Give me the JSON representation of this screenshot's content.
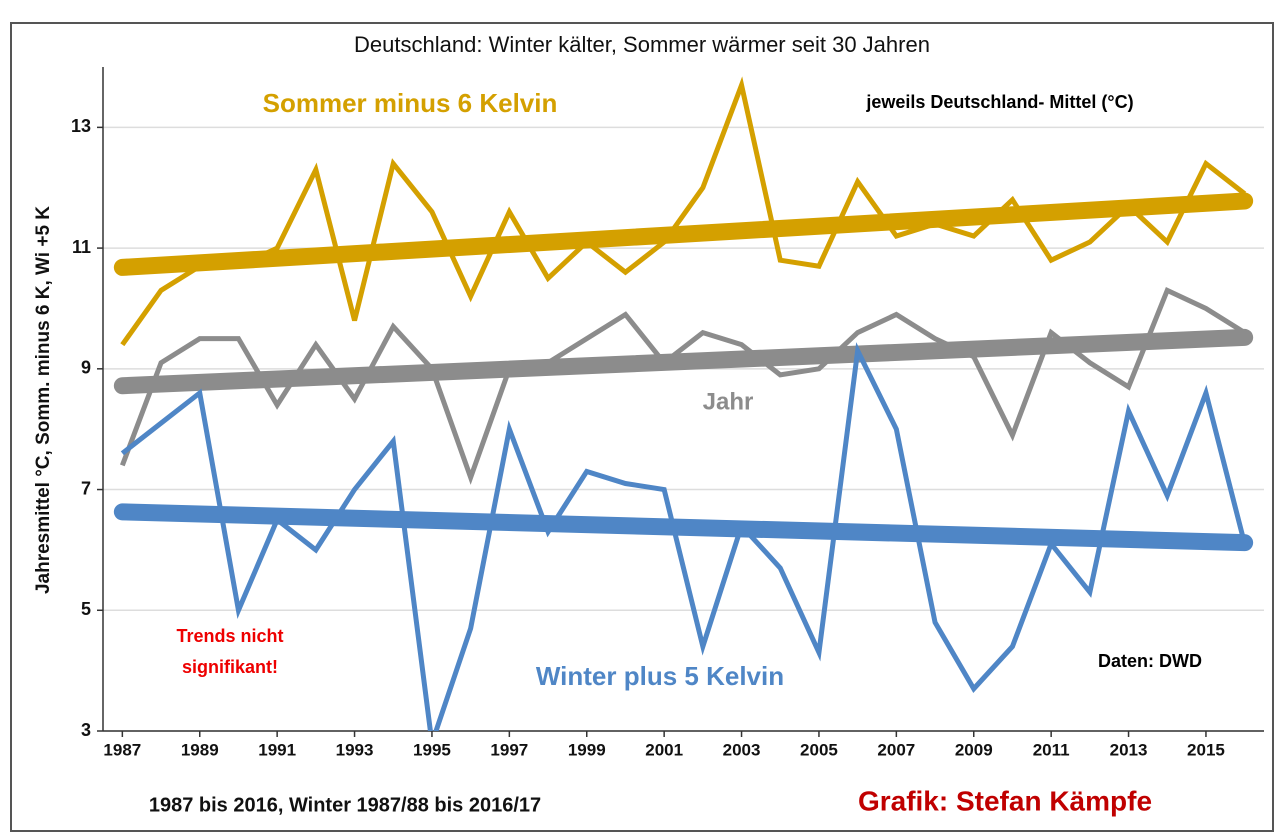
{
  "chart_data": {
    "type": "line",
    "title": "Deutschland: Winter kälter, Sommer wärmer seit 30 Jahren",
    "y_label": "Jahresmittel °C, Somm. minus 6 K, Wi +5 K",
    "annotations": [
      "jeweils Deutschland- Mittel (°C)",
      "Trends nicht",
      "signifikant!",
      "Daten: DWD",
      "1987 bis 2016, Winter 1987/88 bis 2016/17",
      "Grafik: Stefan Kämpfe"
    ],
    "x": [
      1987,
      1988,
      1989,
      1990,
      1991,
      1992,
      1993,
      1994,
      1995,
      1996,
      1997,
      1998,
      1999,
      2000,
      2001,
      2002,
      2003,
      2004,
      2005,
      2006,
      2007,
      2008,
      2009,
      2010,
      2011,
      2012,
      2013,
      2014,
      2015,
      2016
    ],
    "xlim": [
      1986.5,
      2016.5
    ],
    "xticks": [
      1987,
      1989,
      1991,
      1993,
      1995,
      1997,
      1999,
      2001,
      2003,
      2005,
      2007,
      2009,
      2011,
      2013,
      2015
    ],
    "ylim": [
      3,
      14
    ],
    "yticks": [
      3,
      5,
      7,
      9,
      11,
      13
    ],
    "grid": true,
    "series": [
      {
        "name": "Sommer minus 6 Kelvin",
        "color": "#d4a000",
        "values": [
          9.4,
          10.3,
          10.7,
          10.7,
          11.0,
          12.3,
          9.8,
          12.4,
          11.6,
          10.2,
          11.6,
          10.5,
          11.1,
          10.6,
          11.1,
          12.0,
          13.7,
          10.8,
          10.7,
          12.1,
          11.2,
          11.4,
          11.2,
          11.8,
          10.8,
          11.1,
          11.7,
          11.1,
          12.4,
          11.9
        ],
        "trend": [
          10.68,
          11.78
        ]
      },
      {
        "name": "Jahr",
        "color": "#8c8c8c",
        "values": [
          7.4,
          9.1,
          9.5,
          9.5,
          8.4,
          9.4,
          8.5,
          9.7,
          9.0,
          7.2,
          9.0,
          9.1,
          9.5,
          9.9,
          9.1,
          9.6,
          9.4,
          8.9,
          9.0,
          9.6,
          9.9,
          9.5,
          9.2,
          7.9,
          9.6,
          9.1,
          8.7,
          10.3,
          10.0,
          9.6
        ],
        "trend": [
          8.72,
          9.52
        ]
      },
      {
        "name": "Winter plus 5 Kelvin",
        "color": "#4f86c6",
        "values": [
          7.6,
          8.1,
          8.6,
          5.0,
          6.5,
          6.0,
          7.0,
          7.8,
          2.8,
          4.7,
          8.0,
          6.3,
          7.3,
          7.1,
          7.0,
          4.4,
          6.4,
          5.7,
          4.3,
          9.3,
          8.0,
          4.8,
          3.7,
          4.4,
          6.1,
          5.3,
          8.3,
          6.9,
          8.6,
          6.1
        ],
        "trend": [
          6.63,
          6.12
        ]
      }
    ]
  }
}
